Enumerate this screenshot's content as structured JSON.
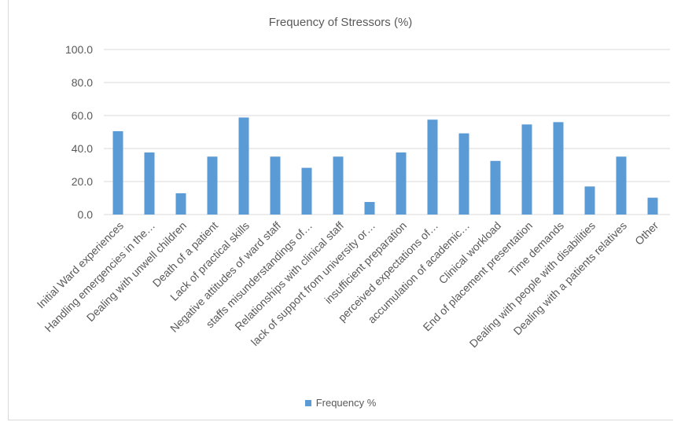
{
  "chart_data": {
    "type": "bar",
    "title": "Frequency of Stressors (%)",
    "xlabel": "",
    "ylabel": "",
    "ylim": [
      0,
      100
    ],
    "yticks": [
      "0.0",
      "20.0",
      "40.0",
      "60.0",
      "80.0",
      "100.0"
    ],
    "grid": true,
    "legend_position": "bottom",
    "bar_color": "#5b9bd5",
    "gridline_color": "#d9d9d9",
    "categories": [
      "Initial Ward experiences",
      "Handling emergencies in the…",
      "Dealing with unwell children",
      "Death of a patient",
      "Lack of practical skills",
      "Negative attitudes of ward staff",
      "staffs misunderstandings of…",
      "Relationships with clinical staff",
      "lack of support from university or…",
      "insufficient preparation",
      "perceived expectations of…",
      "accumulation of academic…",
      "Clinical workload",
      "End of placement presentation",
      "Time demands",
      "Dealing with people with disabilities",
      "Dealing with a patients relatives",
      "Other"
    ],
    "series": [
      {
        "name": "Frequency %",
        "values": [
          50.5,
          37.6,
          12.9,
          35.1,
          58.8,
          35.1,
          28.3,
          35.1,
          7.6,
          37.6,
          57.5,
          49.2,
          32.5,
          54.6,
          56.0,
          17.0,
          35.1,
          10.2
        ]
      }
    ]
  }
}
